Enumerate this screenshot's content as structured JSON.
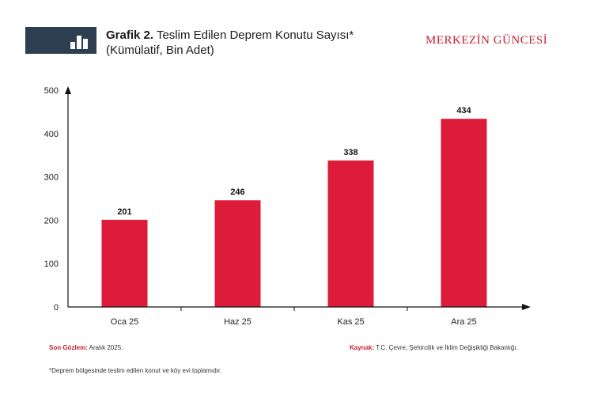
{
  "header": {
    "icon": "bar-chart-icon",
    "title_lead": "Grafik 2.",
    "title_rest": "Teslim Edilen Deprem Konutu Sayısı*",
    "subtitle": "(Kümülatif, Bin Adet)",
    "brand": "MERKEZİN GÜNCESİ"
  },
  "chart_data": {
    "type": "bar",
    "categories": [
      "Oca 25",
      "Haz 25",
      "Kas 25",
      "Ara 25"
    ],
    "values": [
      201,
      246,
      338,
      434
    ],
    "data_labels": [
      "201",
      "246",
      "338",
      "434"
    ],
    "title": "Teslim Edilen Deprem Konutu Sayısı*",
    "subtitle": "(Kümülatif, Bin Adet)",
    "xlabel": "",
    "ylabel": "",
    "ylim": [
      0,
      500
    ],
    "yticks": [
      0,
      100,
      200,
      300,
      400,
      500
    ],
    "ytick_labels": [
      "0",
      "100",
      "200",
      "300",
      "400",
      "500"
    ],
    "grid": false,
    "bar_color": "#dd1c3a"
  },
  "footer": {
    "observation_label": "Son Gözlem:",
    "observation_value": "Aralık 2025.",
    "source_label": "Kaynak:",
    "source_value": "T.C. Çevre, Şehircilik ve İklim Değişikliği Bakanlığı.",
    "footnote": "*Deprem bölgesinde teslim edilen konut ve köy evi toplamıdır."
  }
}
